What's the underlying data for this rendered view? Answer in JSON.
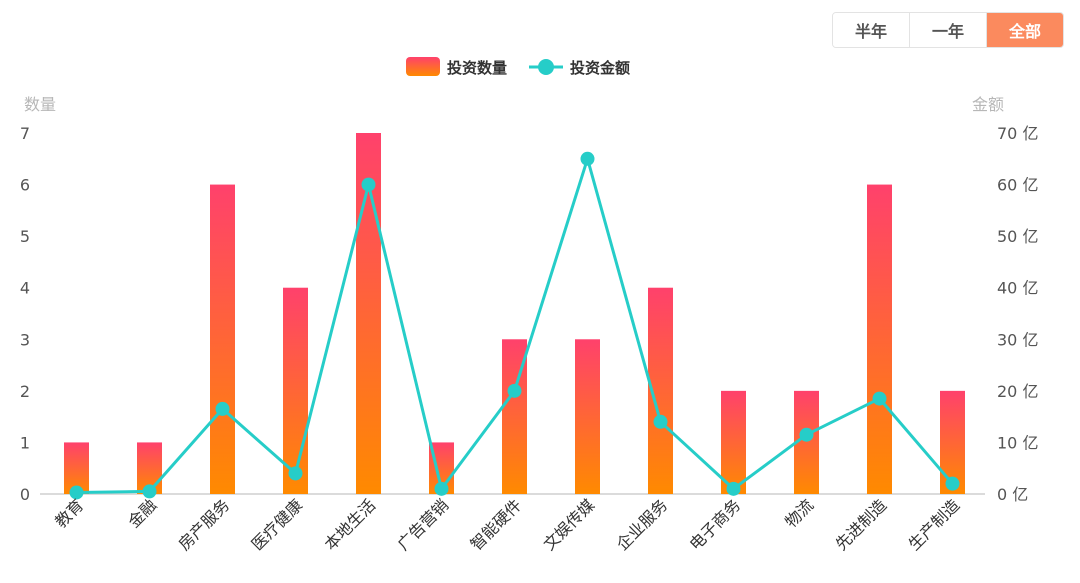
{
  "range_tabs": [
    {
      "label": "半年",
      "active": false
    },
    {
      "label": "一年",
      "active": false
    },
    {
      "label": "全部",
      "active": true
    }
  ],
  "colors": {
    "bar_top": "#ff416c",
    "bar_bottom": "#ff8a00",
    "line": "#26cdc8",
    "active_tab": "#fb8a5e"
  },
  "chart_data": {
    "type": "bar",
    "categories": [
      "教育",
      "金融",
      "房产服务",
      "医疗健康",
      "本地生活",
      "广告营销",
      "智能硬件",
      "文娱传媒",
      "企业服务",
      "电子商务",
      "物流",
      "先进制造",
      "生产制造"
    ],
    "series": [
      {
        "name": "投资数量",
        "type": "bar",
        "axis": "left",
        "values": [
          1,
          1,
          6,
          4,
          7,
          1,
          3,
          3,
          4,
          2,
          2,
          6,
          2
        ]
      },
      {
        "name": "投资金额",
        "type": "line",
        "axis": "right",
        "values": [
          0.3,
          0.5,
          16.5,
          4,
          60,
          1,
          20,
          65,
          14,
          1,
          11.5,
          18.5,
          2
        ]
      }
    ],
    "y_left": {
      "title": "数量",
      "ticks": [
        "0",
        "1",
        "2",
        "3",
        "4",
        "5",
        "6",
        "7"
      ],
      "ylim": [
        0,
        7
      ]
    },
    "y_right": {
      "title": "金额",
      "ticks": [
        "0 亿",
        "10 亿",
        "20 亿",
        "30 亿",
        "40 亿",
        "50 亿",
        "60 亿",
        "70 亿"
      ],
      "ylim": [
        0,
        70
      ]
    },
    "legend_position": "top-center",
    "grid": false
  }
}
